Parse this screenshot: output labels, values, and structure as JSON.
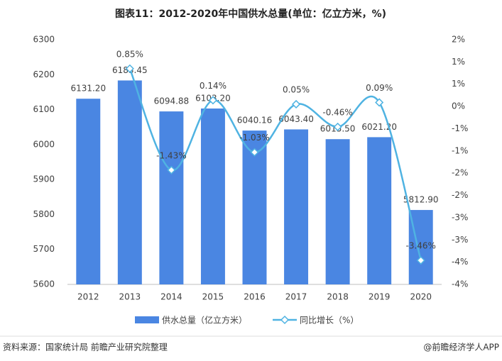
{
  "chart_data": {
    "type": "bar",
    "title": "图表11：2012-2020年中国供水总量(单位：亿立方米，%)",
    "categories": [
      "2012",
      "2013",
      "2014",
      "2015",
      "2016",
      "2017",
      "2018",
      "2019",
      "2020"
    ],
    "series": [
      {
        "name": "供水总量（亿立方米）",
        "type": "bar",
        "color": "#4a86e2",
        "values": [
          6131.2,
          6183.45,
          6094.88,
          6103.2,
          6040.16,
          6043.4,
          6015.5,
          6021.2,
          5812.9
        ],
        "value_labels": [
          "6131.20",
          "6183.45",
          "6094.88",
          "6103.20",
          "6040.16",
          "6043.40",
          "6015.50",
          "6021.20",
          "5812.90"
        ]
      },
      {
        "name": "同比增长（%）",
        "type": "line",
        "axis": "y2",
        "color": "#4fb3e2",
        "values": [
          null,
          0.85,
          -1.43,
          0.14,
          -1.03,
          0.05,
          -0.46,
          0.09,
          -3.46
        ],
        "value_labels": [
          null,
          "0.85%",
          "-1.43%",
          "0.14%",
          "-1.03%",
          "0.05%",
          "-0.46%",
          "0.09%",
          "-3.46%"
        ]
      }
    ],
    "ylim": [
      5600,
      6300
    ],
    "yticks": [
      5600,
      5700,
      5800,
      5900,
      6000,
      6100,
      6200,
      6300
    ],
    "y2lim": [
      -4,
      1.5
    ],
    "y2ticks": [
      {
        "value": 1.5,
        "label": "2%"
      },
      {
        "value": 1,
        "label": "1%"
      },
      {
        "value": 0.5,
        "label": "1%"
      },
      {
        "value": 0,
        "label": "0%"
      },
      {
        "value": -0.5,
        "label": "-1%"
      },
      {
        "value": -1,
        "label": "-1%"
      },
      {
        "value": -1.5,
        "label": "-2%"
      },
      {
        "value": -2,
        "label": "-2%"
      },
      {
        "value": -2.5,
        "label": "-3%"
      },
      {
        "value": -3,
        "label": "-3%"
      },
      {
        "value": -3.5,
        "label": "-4%"
      },
      {
        "value": -4,
        "label": "-4%"
      }
    ],
    "source": "资料来源：国家统计局 前瞻产业研究院整理",
    "credit": "@前瞻经济学人APP"
  }
}
